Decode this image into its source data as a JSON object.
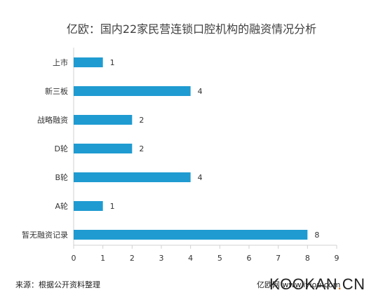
{
  "chart_data": {
    "type": "bar",
    "orientation": "horizontal",
    "title": "亿欧：国内22家民营连锁口腔机构的融资情况分析",
    "categories": [
      "上市",
      "新三板",
      "战略融资",
      "D轮",
      "B轮",
      "A轮",
      "暂无融资记录"
    ],
    "values": [
      1,
      4,
      2,
      2,
      4,
      1,
      8
    ],
    "xlim": [
      0,
      9
    ],
    "xticks": [
      0,
      1,
      2,
      3,
      4,
      5,
      6,
      7,
      8,
      9
    ],
    "grid": false,
    "bar_color": "#1f9bd1",
    "data_labels": true
  },
  "footer": {
    "source": "来源：根据公开资料整理",
    "credit": "亿欧网 www.iyiou.com"
  },
  "watermark": {
    "main": "KOOKAN",
    "dot": ".",
    "suffix": "CN"
  }
}
